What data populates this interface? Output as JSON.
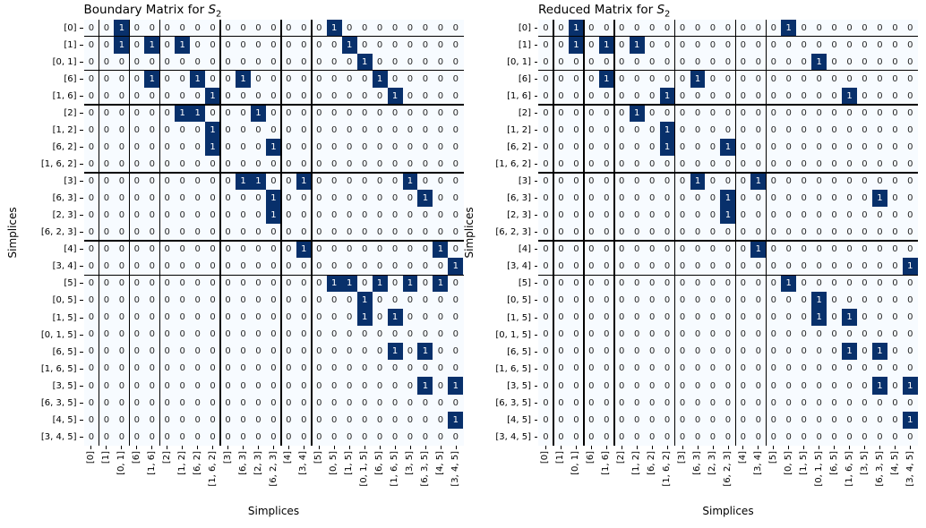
{
  "figure": {
    "background": "#ffffff"
  },
  "colors": {
    "cell_zero_bg": "#f7fbff",
    "cell_one_bg": "#08306b",
    "cell_zero_text": "#262626",
    "cell_one_text": "#ffffff",
    "separator_line": "#000000",
    "label_text": "#000000"
  },
  "chart_data": [
    {
      "type": "heatmap",
      "title": "Boundary Matrix for S₂",
      "title_parts": {
        "prefix": "Boundary Matrix for ",
        "var": "S",
        "sub": "2"
      },
      "xlabel": "Simplices",
      "ylabel": "Simplices",
      "simplex_labels": [
        "[0]",
        "[1]",
        "[0, 1]",
        "[6]",
        "[1, 6]",
        "[2]",
        "[1, 2]",
        "[6, 2]",
        "[1, 6, 2]",
        "[3]",
        "[6, 3]",
        "[2, 3]",
        "[6, 2, 3]",
        "[4]",
        "[3, 4]",
        "[5]",
        "[0, 5]",
        "[1, 5]",
        "[0, 1, 5]",
        "[6, 5]",
        "[1, 6, 5]",
        "[3, 5]",
        "[6, 3, 5]",
        "[4, 5]",
        "[3, 4, 5]"
      ],
      "n": 25,
      "ones_by_row": {
        "0": [
          2,
          16
        ],
        "1": [
          2,
          4,
          6,
          17
        ],
        "2": [
          18
        ],
        "3": [
          4,
          7,
          10,
          19
        ],
        "4": [
          8,
          20
        ],
        "5": [
          6,
          7,
          11
        ],
        "6": [
          8
        ],
        "7": [
          8,
          12
        ],
        "9": [
          10,
          11,
          14,
          21
        ],
        "10": [
          12,
          22
        ],
        "11": [
          12
        ],
        "13": [
          14,
          23
        ],
        "14": [
          24
        ],
        "15": [
          16,
          17,
          19,
          21,
          23
        ],
        "16": [
          18
        ],
        "17": [
          18,
          20
        ],
        "19": [
          20,
          22
        ],
        "21": [
          22,
          24
        ],
        "23": [
          24
        ]
      },
      "block_separators_after_index": [
        0,
        2,
        4,
        8,
        12,
        14
      ]
    },
    {
      "type": "heatmap",
      "title": "Reduced Matrix for S₂",
      "title_parts": {
        "prefix": "Reduced Matrix for ",
        "var": "S",
        "sub": "2"
      },
      "xlabel": "Simplices",
      "ylabel": "Simplices",
      "simplex_labels": [
        "[0]",
        "[1]",
        "[0, 1]",
        "[6]",
        "[1, 6]",
        "[2]",
        "[1, 2]",
        "[6, 2]",
        "[1, 6, 2]",
        "[3]",
        "[6, 3]",
        "[2, 3]",
        "[6, 2, 3]",
        "[4]",
        "[3, 4]",
        "[5]",
        "[0, 5]",
        "[1, 5]",
        "[0, 1, 5]",
        "[6, 5]",
        "[1, 6, 5]",
        "[3, 5]",
        "[6, 3, 5]",
        "[4, 5]",
        "[3, 4, 5]"
      ],
      "n": 25,
      "ones_by_row": {
        "0": [
          2,
          16
        ],
        "1": [
          2,
          4,
          6
        ],
        "2": [
          18
        ],
        "3": [
          4,
          10
        ],
        "4": [
          8,
          20
        ],
        "5": [
          6
        ],
        "6": [
          8
        ],
        "7": [
          8,
          12
        ],
        "9": [
          10,
          14
        ],
        "10": [
          12,
          22
        ],
        "11": [
          12
        ],
        "13": [
          14
        ],
        "14": [
          24
        ],
        "15": [
          16
        ],
        "16": [
          18
        ],
        "17": [
          18,
          20
        ],
        "19": [
          20,
          22
        ],
        "21": [
          22,
          24
        ],
        "23": [
          24
        ]
      },
      "block_separators_after_index": [
        0,
        2,
        4,
        8,
        12,
        14
      ]
    }
  ]
}
